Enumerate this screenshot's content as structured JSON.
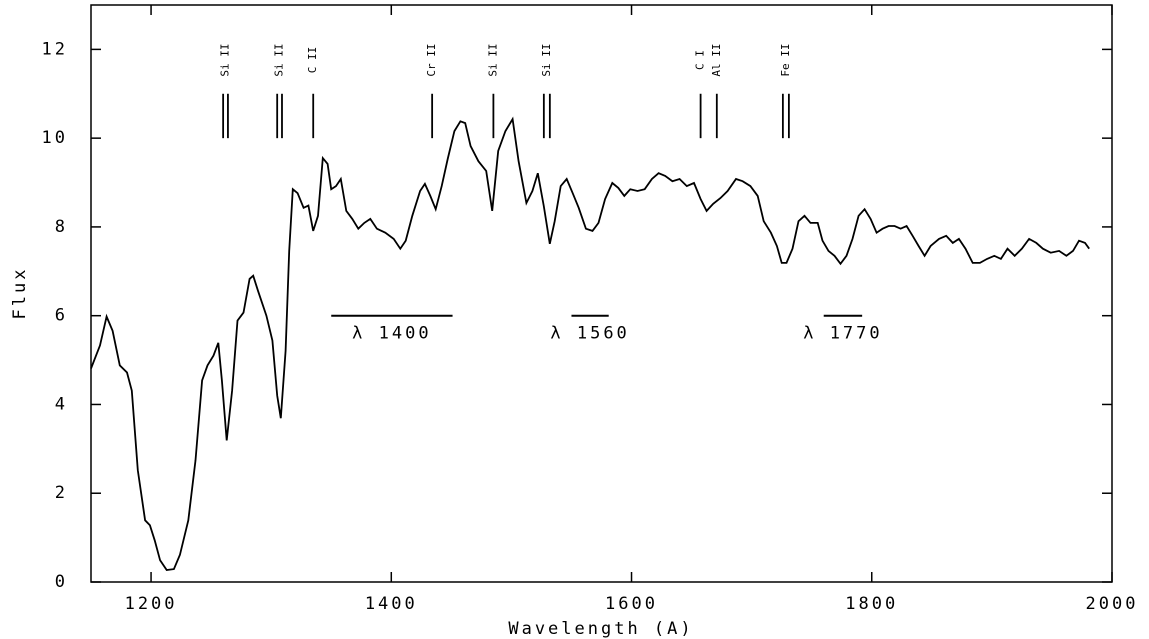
{
  "chart_data": {
    "type": "line",
    "x_label": "Wavelength (A)",
    "y_label": "Flux",
    "xlim": [
      1150,
      2000
    ],
    "xticks": [
      1200,
      1400,
      1600,
      1800,
      2000
    ],
    "ylim": [
      0,
      13
    ],
    "yticks": [
      0,
      2,
      4,
      6,
      8,
      10,
      12
    ],
    "series": [
      {
        "color": "#000000",
        "x": [
          1150,
          1157.5,
          1163,
          1168,
          1174,
          1180,
          1184,
          1189,
          1195,
          1199,
          1203,
          1207.5,
          1213,
          1219,
          1224,
          1231,
          1237,
          1242.5,
          1247,
          1252,
          1256,
          1259,
          1263,
          1267.5,
          1272,
          1277,
          1282,
          1285,
          1289,
          1296,
          1301,
          1305,
          1308,
          1312,
          1315,
          1318,
          1322,
          1327,
          1331,
          1335,
          1339,
          1343,
          1347,
          1350,
          1354,
          1358,
          1362.5,
          1367.5,
          1372.5,
          1377.5,
          1382.5,
          1388,
          1395,
          1402,
          1407.5,
          1412,
          1417.5,
          1424,
          1428,
          1432.5,
          1437,
          1442,
          1447,
          1452.5,
          1457.5,
          1461.5,
          1466,
          1472.5,
          1479,
          1484,
          1489,
          1495,
          1501,
          1506,
          1512.5,
          1517.5,
          1522,
          1527,
          1532,
          1536,
          1541,
          1546,
          1551,
          1556,
          1562,
          1567.5,
          1572.5,
          1578,
          1584,
          1589,
          1594,
          1599,
          1605,
          1611,
          1617,
          1622.5,
          1628,
          1634,
          1640,
          1646,
          1652,
          1657.5,
          1662.5,
          1668,
          1674,
          1680,
          1687,
          1692.5,
          1699,
          1705,
          1710,
          1716,
          1721,
          1725,
          1729,
          1734,
          1739,
          1744,
          1749,
          1755,
          1759,
          1764,
          1769,
          1774,
          1779,
          1784,
          1789,
          1794,
          1799,
          1804,
          1809,
          1814,
          1819,
          1824,
          1829,
          1834,
          1839,
          1844,
          1849,
          1856,
          1862,
          1867.5,
          1872.5,
          1878,
          1884,
          1890,
          1896,
          1902,
          1907.5,
          1913,
          1919,
          1925,
          1931,
          1937,
          1942.5,
          1949,
          1956,
          1962,
          1967.5,
          1972.5,
          1977.5,
          1981
        ],
        "values": [
          4.81,
          5.33,
          5.98,
          5.66,
          4.88,
          4.72,
          4.31,
          2.52,
          1.39,
          1.28,
          0.94,
          0.49,
          0.27,
          0.29,
          0.61,
          1.39,
          2.74,
          4.54,
          4.88,
          5.1,
          5.39,
          4.54,
          3.19,
          4.31,
          5.89,
          6.07,
          6.83,
          6.9,
          6.56,
          6.0,
          5.44,
          4.2,
          3.69,
          5.21,
          7.46,
          8.85,
          8.76,
          8.43,
          8.48,
          7.91,
          8.25,
          9.55,
          9.42,
          8.85,
          8.92,
          9.08,
          8.36,
          8.18,
          7.96,
          8.09,
          8.18,
          7.96,
          7.87,
          7.73,
          7.51,
          7.69,
          8.25,
          8.81,
          8.97,
          8.7,
          8.4,
          8.92,
          9.53,
          10.16,
          10.38,
          10.34,
          9.82,
          9.48,
          9.26,
          8.36,
          9.71,
          10.16,
          10.43,
          9.48,
          8.54,
          8.81,
          9.21,
          8.47,
          7.62,
          8.13,
          8.92,
          9.08,
          8.76,
          8.43,
          7.96,
          7.91,
          8.09,
          8.63,
          8.99,
          8.88,
          8.7,
          8.85,
          8.81,
          8.85,
          9.08,
          9.21,
          9.15,
          9.03,
          9.08,
          8.92,
          8.99,
          8.63,
          8.36,
          8.52,
          8.65,
          8.81,
          9.08,
          9.03,
          8.92,
          8.7,
          8.13,
          7.87,
          7.57,
          7.19,
          7.19,
          7.51,
          8.13,
          8.25,
          8.09,
          8.09,
          7.69,
          7.46,
          7.35,
          7.17,
          7.35,
          7.73,
          8.25,
          8.4,
          8.18,
          7.87,
          7.96,
          8.02,
          8.02,
          7.96,
          8.02,
          7.8,
          7.57,
          7.35,
          7.57,
          7.73,
          7.8,
          7.64,
          7.73,
          7.51,
          7.19,
          7.19,
          7.28,
          7.35,
          7.28,
          7.51,
          7.35,
          7.51,
          7.73,
          7.64,
          7.51,
          7.42,
          7.46,
          7.35,
          7.46,
          7.69,
          7.64,
          7.51
        ]
      }
    ],
    "line_ids": [
      {
        "label": "Si II",
        "lines": [
          1260,
          1264
        ]
      },
      {
        "label": "Si II",
        "lines": [
          1305,
          1309
        ]
      },
      {
        "label": "C II",
        "lines": [
          1335
        ]
      },
      {
        "label": "Cr II",
        "lines": [
          1434
        ]
      },
      {
        "label": "Si II",
        "lines": [
          1485
        ]
      },
      {
        "label": "Si II",
        "lines": [
          1527,
          1532
        ]
      },
      {
        "label": "C I",
        "lines": [
          1657.5
        ]
      },
      {
        "label": "Al II",
        "lines": [
          1671
        ]
      },
      {
        "label": "Fe II",
        "lines": [
          1726,
          1731
        ]
      }
    ],
    "line_id_range": [
      10,
      11
    ],
    "windows": [
      {
        "label": "λ 1400",
        "x": [
          1350,
          1451
        ],
        "y": 6
      },
      {
        "label": "λ 1560",
        "x": [
          1550,
          1581
        ],
        "y": 6
      },
      {
        "label": "λ 1770",
        "x": [
          1760,
          1792
        ],
        "y": 6
      }
    ]
  }
}
